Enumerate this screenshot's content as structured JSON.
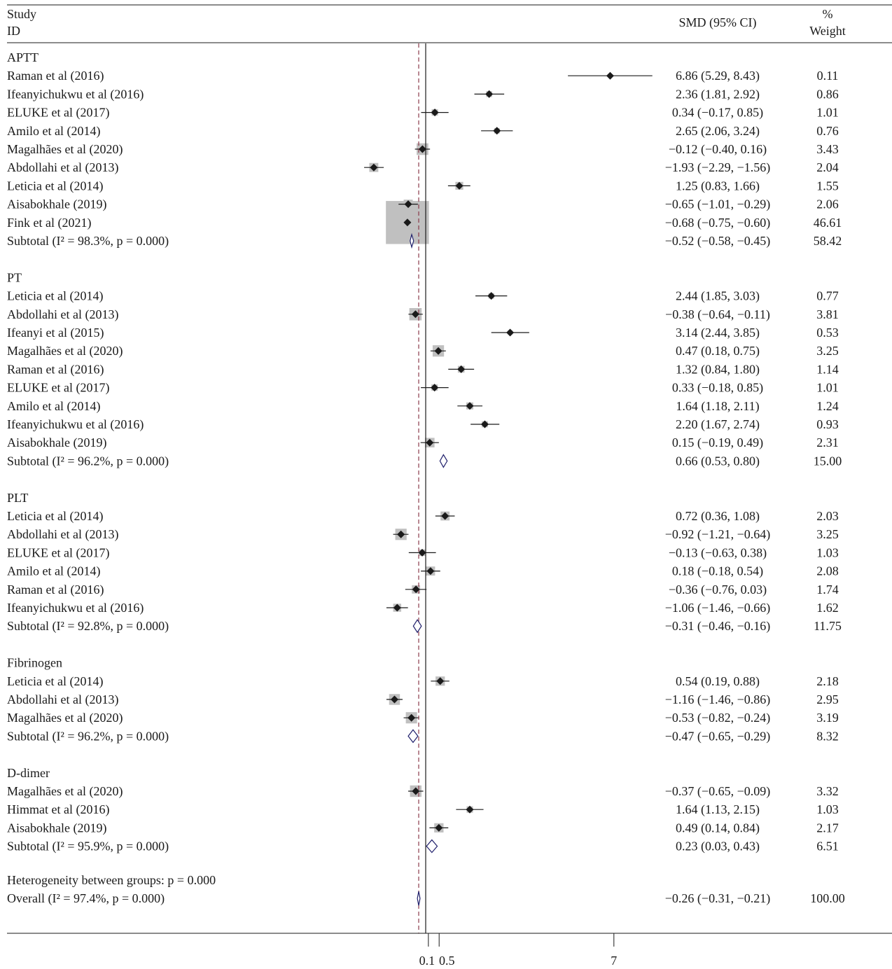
{
  "header": {
    "study_line1": "Study",
    "study_line2": "ID",
    "smd_label": "SMD (95% CI)",
    "weight_line1": "%",
    "weight_line2": "Weight"
  },
  "chart_data": {
    "type": "forest",
    "xaxis": {
      "ticks": [
        0.1,
        0.5,
        7
      ],
      "tick_labels": [
        "0.1",
        "0.5",
        "7"
      ],
      "null_line": 0,
      "overall_line": -0.26
    },
    "groups": [
      {
        "name": "APTT",
        "studies": [
          {
            "label": "Raman et al (2016)",
            "smd": 6.86,
            "lo": 5.29,
            "hi": 8.43,
            "ci_text": "6.86 (5.29, 8.43)",
            "weight": 0.11,
            "weight_text": "0.11"
          },
          {
            "label": "Ifeanyichukwu et al (2016)",
            "smd": 2.36,
            "lo": 1.81,
            "hi": 2.92,
            "ci_text": "2.36 (1.81, 2.92)",
            "weight": 0.86,
            "weight_text": "0.86"
          },
          {
            "label": "ELUKE et al (2017)",
            "smd": 0.34,
            "lo": -0.17,
            "hi": 0.85,
            "ci_text": "0.34 (−0.17, 0.85)",
            "weight": 1.01,
            "weight_text": "1.01"
          },
          {
            "label": "Amilo et al (2014)",
            "smd": 2.65,
            "lo": 2.06,
            "hi": 3.24,
            "ci_text": "2.65 (2.06, 3.24)",
            "weight": 0.76,
            "weight_text": "0.76"
          },
          {
            "label": "Magalhães et al (2020)",
            "smd": -0.12,
            "lo": -0.4,
            "hi": 0.16,
            "ci_text": "−0.12 (−0.40, 0.16)",
            "weight": 3.43,
            "weight_text": "3.43"
          },
          {
            "label": "Abdollahi et al (2013)",
            "smd": -1.93,
            "lo": -2.29,
            "hi": -1.56,
            "ci_text": "−1.93 (−2.29, −1.56)",
            "weight": 2.04,
            "weight_text": "2.04"
          },
          {
            "label": "Leticia et al (2014)",
            "smd": 1.25,
            "lo": 0.83,
            "hi": 1.66,
            "ci_text": "1.25 (0.83, 1.66)",
            "weight": 1.55,
            "weight_text": "1.55"
          },
          {
            "label": "Aisabokhale (2019)",
            "smd": -0.65,
            "lo": -1.01,
            "hi": -0.29,
            "ci_text": "−0.65 (−1.01, −0.29)",
            "weight": 2.06,
            "weight_text": "2.06"
          },
          {
            "label": "Fink et al (2021)",
            "smd": -0.68,
            "lo": -0.75,
            "hi": -0.6,
            "ci_text": "−0.68 (−0.75, −0.60)",
            "weight": 46.61,
            "weight_text": "46.61"
          }
        ],
        "subtotal": {
          "label": "Subtotal (I² = 98.3%, p = 0.000)",
          "smd": -0.52,
          "lo": -0.58,
          "hi": -0.45,
          "ci_text": "−0.52 (−0.58, −0.45)",
          "weight_text": "58.42"
        }
      },
      {
        "name": "PT",
        "studies": [
          {
            "label": "Leticia et al (2014)",
            "smd": 2.44,
            "lo": 1.85,
            "hi": 3.03,
            "ci_text": "2.44 (1.85, 3.03)",
            "weight": 0.77,
            "weight_text": "0.77"
          },
          {
            "label": "Abdollahi et al (2013)",
            "smd": -0.38,
            "lo": -0.64,
            "hi": -0.11,
            "ci_text": "−0.38 (−0.64, −0.11)",
            "weight": 3.81,
            "weight_text": "3.81"
          },
          {
            "label": "Ifeanyi et al (2015)",
            "smd": 3.14,
            "lo": 2.44,
            "hi": 3.85,
            "ci_text": "3.14 (2.44, 3.85)",
            "weight": 0.53,
            "weight_text": "0.53"
          },
          {
            "label": "Magalhães et al (2020)",
            "smd": 0.47,
            "lo": 0.18,
            "hi": 0.75,
            "ci_text": "0.47 (0.18, 0.75)",
            "weight": 3.25,
            "weight_text": "3.25"
          },
          {
            "label": "Raman et al (2016)",
            "smd": 1.32,
            "lo": 0.84,
            "hi": 1.8,
            "ci_text": "1.32 (0.84, 1.80)",
            "weight": 1.14,
            "weight_text": "1.14"
          },
          {
            "label": "ELUKE et al (2017)",
            "smd": 0.33,
            "lo": -0.18,
            "hi": 0.85,
            "ci_text": "0.33 (−0.18, 0.85)",
            "weight": 1.01,
            "weight_text": "1.01"
          },
          {
            "label": "Amilo et al (2014)",
            "smd": 1.64,
            "lo": 1.18,
            "hi": 2.11,
            "ci_text": "1.64 (1.18, 2.11)",
            "weight": 1.24,
            "weight_text": "1.24"
          },
          {
            "label": "Ifeanyichukwu et al (2016)",
            "smd": 2.2,
            "lo": 1.67,
            "hi": 2.74,
            "ci_text": "2.20 (1.67, 2.74)",
            "weight": 0.93,
            "weight_text": "0.93"
          },
          {
            "label": "Aisabokhale (2019)",
            "smd": 0.15,
            "lo": -0.19,
            "hi": 0.49,
            "ci_text": "0.15 (−0.19, 0.49)",
            "weight": 2.31,
            "weight_text": "2.31"
          }
        ],
        "subtotal": {
          "label": "Subtotal (I² = 96.2%, p = 0.000)",
          "smd": 0.66,
          "lo": 0.53,
          "hi": 0.8,
          "ci_text": "0.66 (0.53, 0.80)",
          "weight_text": "15.00"
        }
      },
      {
        "name": "PLT",
        "studies": [
          {
            "label": "Leticia et al (2014)",
            "smd": 0.72,
            "lo": 0.36,
            "hi": 1.08,
            "ci_text": "0.72 (0.36, 1.08)",
            "weight": 2.03,
            "weight_text": "2.03"
          },
          {
            "label": "Abdollahi et al (2013)",
            "smd": -0.92,
            "lo": -1.21,
            "hi": -0.64,
            "ci_text": "−0.92 (−1.21, −0.64)",
            "weight": 3.25,
            "weight_text": "3.25"
          },
          {
            "label": "ELUKE et al (2017)",
            "smd": -0.13,
            "lo": -0.63,
            "hi": 0.38,
            "ci_text": "−0.13 (−0.63, 0.38)",
            "weight": 1.03,
            "weight_text": "1.03"
          },
          {
            "label": "Amilo et al (2014)",
            "smd": 0.18,
            "lo": -0.18,
            "hi": 0.54,
            "ci_text": "0.18 (−0.18, 0.54)",
            "weight": 2.08,
            "weight_text": "2.08"
          },
          {
            "label": "Raman et al (2016)",
            "smd": -0.36,
            "lo": -0.76,
            "hi": 0.03,
            "ci_text": "−0.36 (−0.76, 0.03)",
            "weight": 1.74,
            "weight_text": "1.74"
          },
          {
            "label": "Ifeanyichukwu et al (2016)",
            "smd": -1.06,
            "lo": -1.46,
            "hi": -0.66,
            "ci_text": "−1.06 (−1.46, −0.66)",
            "weight": 1.62,
            "weight_text": "1.62"
          }
        ],
        "subtotal": {
          "label": "Subtotal (I² = 92.8%, p = 0.000)",
          "smd": -0.31,
          "lo": -0.46,
          "hi": -0.16,
          "ci_text": "−0.31 (−0.46, −0.16)",
          "weight_text": "11.75"
        }
      },
      {
        "name": "Fibrinogen",
        "studies": [
          {
            "label": "Leticia et al (2014)",
            "smd": 0.54,
            "lo": 0.19,
            "hi": 0.88,
            "ci_text": "0.54 (0.19, 0.88)",
            "weight": 2.18,
            "weight_text": "2.18"
          },
          {
            "label": "Abdollahi et al (2013)",
            "smd": -1.16,
            "lo": -1.46,
            "hi": -0.86,
            "ci_text": "−1.16 (−1.46, −0.86)",
            "weight": 2.95,
            "weight_text": "2.95"
          },
          {
            "label": "Magalhães et al (2020)",
            "smd": -0.53,
            "lo": -0.82,
            "hi": -0.24,
            "ci_text": "−0.53 (−0.82, −0.24)",
            "weight": 3.19,
            "weight_text": "3.19"
          }
        ],
        "subtotal": {
          "label": "Subtotal (I² = 96.2%, p = 0.000)",
          "smd": -0.47,
          "lo": -0.65,
          "hi": -0.29,
          "ci_text": "−0.47 (−0.65, −0.29)",
          "weight_text": "8.32"
        }
      },
      {
        "name": "D-dimer",
        "studies": [
          {
            "label": "Magalhães et al (2020)",
            "smd": -0.37,
            "lo": -0.65,
            "hi": -0.09,
            "ci_text": "−0.37 (−0.65, −0.09)",
            "weight": 3.32,
            "weight_text": "3.32"
          },
          {
            "label": "Himmat et al (2016)",
            "smd": 1.64,
            "lo": 1.13,
            "hi": 2.15,
            "ci_text": "1.64 (1.13, 2.15)",
            "weight": 1.03,
            "weight_text": "1.03"
          },
          {
            "label": "Aisabokhale (2019)",
            "smd": 0.49,
            "lo": 0.14,
            "hi": 0.84,
            "ci_text": "0.49 (0.14, 0.84)",
            "weight": 2.17,
            "weight_text": "2.17"
          }
        ],
        "subtotal": {
          "label": "Subtotal (I² = 95.9%, p = 0.000)",
          "smd": 0.23,
          "lo": 0.03,
          "hi": 0.43,
          "ci_text": "0.23 (0.03, 0.43)",
          "weight_text": "6.51"
        }
      }
    ],
    "heterogeneity_text": "Heterogeneity between groups: p = 0.000",
    "overall": {
      "label": "Overall (I² = 97.4%, p = 0.000)",
      "smd": -0.26,
      "lo": -0.31,
      "hi": -0.21,
      "ci_text": "−0.26 (−0.31, −0.21)",
      "weight_text": "100.00"
    }
  },
  "colors": {
    "box_fill": "#c0c0c0",
    "point": "#1a1a1a",
    "diamond_stroke": "#1f1f6b",
    "overall_line": "#8b3a4a",
    "axis": "#1a1a1a"
  }
}
